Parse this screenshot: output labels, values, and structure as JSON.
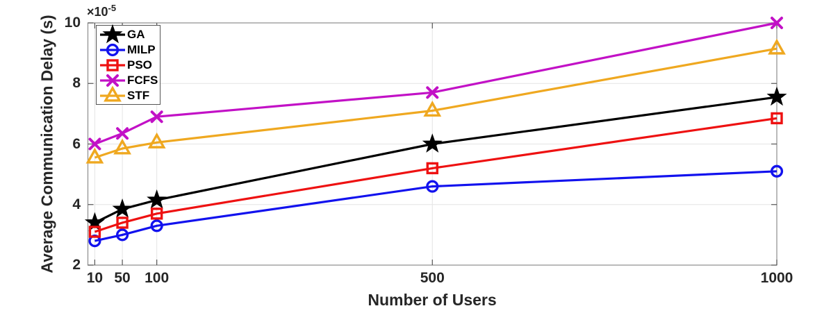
{
  "figure": {
    "background": "#FFFFFF"
  },
  "chart_data": {
    "type": "line",
    "title": "",
    "xlabel": "Number of Users",
    "ylabel": "Average Communication Delay (s)",
    "y_axis_multiplier": {
      "base": "×10",
      "exponent": "-5"
    },
    "x": [
      10,
      50,
      100,
      500,
      1000
    ],
    "xlim": [
      0,
      1000
    ],
    "ylim": [
      2,
      10
    ],
    "xticks": [
      10,
      50,
      100,
      500,
      1000
    ],
    "yticks": [
      2,
      4,
      6,
      8,
      10
    ],
    "grid": true,
    "legend_position": "top-left",
    "series": [
      {
        "name": "GA",
        "color": "#000000",
        "marker": "star",
        "values": [
          3.4,
          3.85,
          4.15,
          6.0,
          7.55
        ]
      },
      {
        "name": "MILP",
        "color": "#1212EE",
        "marker": "circle",
        "values": [
          2.8,
          3.0,
          3.3,
          4.6,
          5.1
        ]
      },
      {
        "name": "PSO",
        "color": "#EE1111",
        "marker": "square",
        "values": [
          3.1,
          3.4,
          3.7,
          5.2,
          6.85
        ]
      },
      {
        "name": "FCFS",
        "color": "#C211C6",
        "marker": "x",
        "values": [
          6.0,
          6.35,
          6.9,
          7.7,
          10.0
        ]
      },
      {
        "name": "STF",
        "color": "#EFA820",
        "marker": "triangle",
        "values": [
          5.55,
          5.85,
          6.05,
          7.1,
          9.15
        ]
      }
    ],
    "axis_colors": {
      "text": "#262626",
      "box": "#8C8C8C",
      "tick": "#555555",
      "grid": "#E4E4E4",
      "legend_border": "#545454"
    }
  }
}
